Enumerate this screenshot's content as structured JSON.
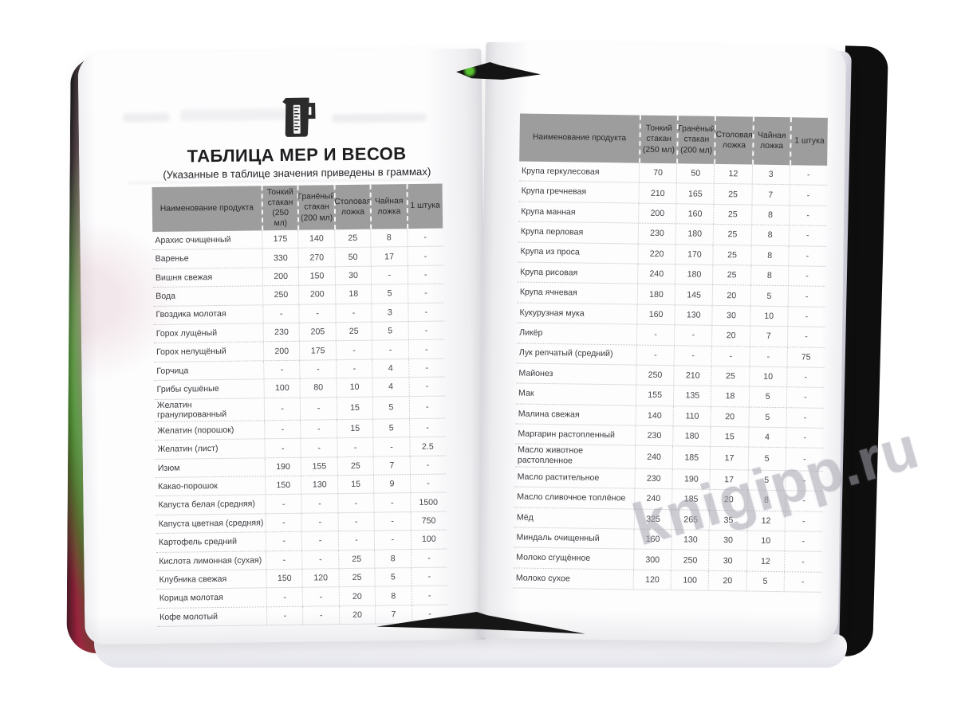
{
  "watermark": "knigipp.ru",
  "icons": {
    "cup": "measuring-cup-icon"
  },
  "colors": {
    "header_bg": "#9d9d9d",
    "table_text": "#454549",
    "cover": "#131313",
    "watermark": "#a4a4ae",
    "page": "#fdfdfe"
  },
  "table_headers": [
    "Наименование продукта",
    "Тонкий стакан (250 мл)",
    "Гранёный стакан (200 мл)",
    "Столовая ложка",
    "Чайная ложка",
    "1 штука"
  ],
  "page_left": {
    "title": "ТАБЛИЦА МЕР И ВЕСОВ",
    "subtitle": "(Указанные в таблице значения приведены в граммах)",
    "rows": [
      [
        "Арахис очищенный",
        "175",
        "140",
        "25",
        "8",
        "-"
      ],
      [
        "Варенье",
        "330",
        "270",
        "50",
        "17",
        "-"
      ],
      [
        "Вишня свежая",
        "200",
        "150",
        "30",
        "-",
        "-"
      ],
      [
        "Вода",
        "250",
        "200",
        "18",
        "5",
        "-"
      ],
      [
        "Гвоздика молотая",
        "-",
        "-",
        "-",
        "3",
        "-"
      ],
      [
        "Горох лущёный",
        "230",
        "205",
        "25",
        "5",
        "-"
      ],
      [
        "Горох нелущёный",
        "200",
        "175",
        "-",
        "-",
        "-"
      ],
      [
        "Горчица",
        "-",
        "-",
        "-",
        "4",
        "-"
      ],
      [
        "Грибы сушёные",
        "100",
        "80",
        "10",
        "4",
        "-"
      ],
      [
        "Желатин гранулированный",
        "-",
        "-",
        "15",
        "5",
        "-"
      ],
      [
        "Желатин (порошок)",
        "-",
        "-",
        "15",
        "5",
        "-"
      ],
      [
        "Желатин (лист)",
        "-",
        "-",
        "-",
        "-",
        "2.5"
      ],
      [
        "Изюм",
        "190",
        "155",
        "25",
        "7",
        "-"
      ],
      [
        "Какао-порошок",
        "150",
        "130",
        "15",
        "9",
        "-"
      ],
      [
        "Капуста белая (средняя)",
        "-",
        "-",
        "-",
        "-",
        "1500"
      ],
      [
        "Капуста цветная (средняя)",
        "-",
        "-",
        "-",
        "-",
        "750"
      ],
      [
        "Картофель средний",
        "-",
        "-",
        "-",
        "-",
        "100"
      ],
      [
        "Кислота лимонная (сухая)",
        "-",
        "-",
        "25",
        "8",
        "-"
      ],
      [
        "Клубника свежая",
        "150",
        "120",
        "25",
        "5",
        "-"
      ],
      [
        "Корица молотая",
        "-",
        "-",
        "20",
        "8",
        "-"
      ],
      [
        "Кофе молотый",
        "-",
        "-",
        "20",
        "7",
        "-"
      ]
    ]
  },
  "page_right": {
    "rows": [
      [
        "Крупа геркулесовая",
        "70",
        "50",
        "12",
        "3",
        "-"
      ],
      [
        "Крупа гречневая",
        "210",
        "165",
        "25",
        "7",
        "-"
      ],
      [
        "Крупа манная",
        "200",
        "160",
        "25",
        "8",
        "-"
      ],
      [
        "Крупа перловая",
        "230",
        "180",
        "25",
        "8",
        "-"
      ],
      [
        "Крупа из проса",
        "220",
        "170",
        "25",
        "8",
        "-"
      ],
      [
        "Крупа рисовая",
        "240",
        "180",
        "25",
        "8",
        "-"
      ],
      [
        "Крупа ячневая",
        "180",
        "145",
        "20",
        "5",
        "-"
      ],
      [
        "Кукурузная мука",
        "160",
        "130",
        "30",
        "10",
        "-"
      ],
      [
        "Ликёр",
        "-",
        "-",
        "20",
        "7",
        "-"
      ],
      [
        "Лук репчатый (средний)",
        "-",
        "-",
        "-",
        "-",
        "75"
      ],
      [
        "Майонез",
        "250",
        "210",
        "25",
        "10",
        "-"
      ],
      [
        "Мак",
        "155",
        "135",
        "18",
        "5",
        "-"
      ],
      [
        "Малина свежая",
        "140",
        "110",
        "20",
        "5",
        "-"
      ],
      [
        "Маргарин растопленный",
        "230",
        "180",
        "15",
        "4",
        "-"
      ],
      [
        "Масло животное растопленное",
        "240",
        "185",
        "17",
        "5",
        "-"
      ],
      [
        "Масло растительное",
        "230",
        "190",
        "17",
        "5",
        "-"
      ],
      [
        "Масло сливочное топлёное",
        "240",
        "185",
        "20",
        "8",
        "-"
      ],
      [
        "Мёд",
        "325",
        "265",
        "35",
        "12",
        "-"
      ],
      [
        "Миндаль очищенный",
        "160",
        "130",
        "30",
        "10",
        "-"
      ],
      [
        "Молоко сгущённое",
        "300",
        "250",
        "30",
        "12",
        "-"
      ],
      [
        "Молоко сухое",
        "120",
        "100",
        "20",
        "5",
        "-"
      ]
    ]
  }
}
